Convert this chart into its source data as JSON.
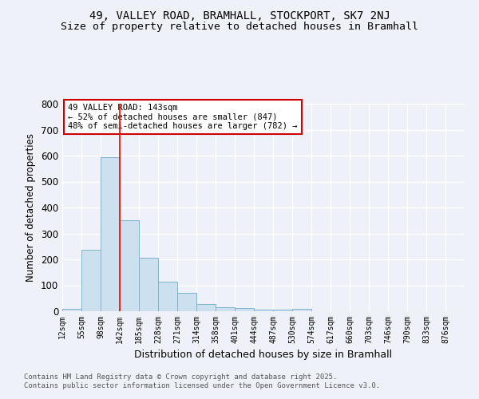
{
  "title1": "49, VALLEY ROAD, BRAMHALL, STOCKPORT, SK7 2NJ",
  "title2": "Size of property relative to detached houses in Bramhall",
  "xlabel": "Distribution of detached houses by size in Bramhall",
  "ylabel": "Number of detached properties",
  "bin_labels": [
    "12sqm",
    "55sqm",
    "98sqm",
    "142sqm",
    "185sqm",
    "228sqm",
    "271sqm",
    "314sqm",
    "358sqm",
    "401sqm",
    "444sqm",
    "487sqm",
    "530sqm",
    "574sqm",
    "617sqm",
    "660sqm",
    "703sqm",
    "746sqm",
    "790sqm",
    "833sqm",
    "876sqm"
  ],
  "bar_heights": [
    8,
    238,
    595,
    350,
    205,
    115,
    72,
    27,
    15,
    12,
    6,
    5,
    8,
    0,
    0,
    0,
    0,
    0,
    0,
    0,
    0
  ],
  "bar_color": "#cce0f0",
  "bar_edge_color": "#7fb3d3",
  "red_line_index": 3,
  "annotation_text": "49 VALLEY ROAD: 143sqm\n← 52% of detached houses are smaller (847)\n48% of semi-detached houses are larger (782) →",
  "annotation_box_color": "#ffffff",
  "annotation_border_color": "#cc0000",
  "ylim": [
    0,
    800
  ],
  "yticks": [
    0,
    100,
    200,
    300,
    400,
    500,
    600,
    700,
    800
  ],
  "footer1": "Contains HM Land Registry data © Crown copyright and database right 2025.",
  "footer2": "Contains public sector information licensed under the Open Government Licence v3.0.",
  "background_color": "#eef2f8",
  "title_fontsize": 10,
  "subtitle_fontsize": 9.5
}
